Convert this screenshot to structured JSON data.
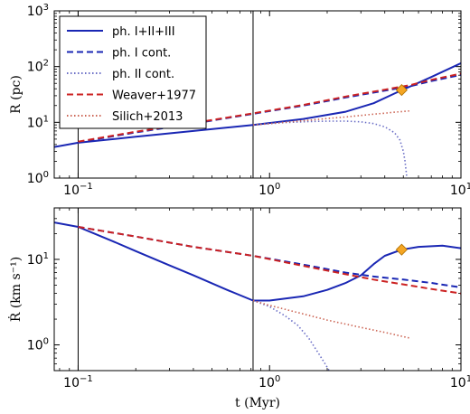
{
  "chart_data": [
    {
      "type": "line",
      "title": "",
      "xlabel": "",
      "ylabel": "R (pc)",
      "x_scale": "log",
      "y_scale": "log",
      "xlim": [
        0.075,
        10
      ],
      "ylim": [
        1,
        1000
      ],
      "x_ticks": [
        {
          "value": 0.1,
          "base": "10",
          "exp": "−1"
        },
        {
          "value": 1,
          "base": "10",
          "exp": "0"
        },
        {
          "value": 10,
          "base": "10",
          "exp": "1"
        }
      ],
      "y_ticks": [
        {
          "value": 1,
          "base": "10",
          "exp": "0"
        },
        {
          "value": 10,
          "base": "10",
          "exp": "1"
        },
        {
          "value": 100,
          "base": "10",
          "exp": "2"
        },
        {
          "value": 1000,
          "base": "10",
          "exp": "3"
        }
      ],
      "vlines": [
        0.1,
        0.82
      ],
      "grid": false,
      "legend": {
        "placement": "top-left",
        "entries": [
          "ph. I+II+III",
          "ph. I cont.",
          "ph. II cont.",
          "Weaver+1977",
          "Silich+2013"
        ]
      },
      "series": [
        {
          "name": "ph. I+II+III",
          "color": "#1a27b4",
          "dash": "solid",
          "x": [
            0.075,
            0.1,
            0.2,
            0.4,
            0.82,
            1.5,
            2.5,
            3.5,
            4.5,
            5.5,
            7,
            10
          ],
          "y": [
            3.6,
            4.3,
            5.5,
            7,
            9,
            11.5,
            15.5,
            22,
            33,
            45,
            65,
            115
          ]
        },
        {
          "name": "ph. I cont.",
          "color": "#1a27b4",
          "dash": "dashed",
          "x": [
            0.1,
            0.2,
            0.4,
            0.82,
            1.5,
            2.5,
            4,
            5.5,
            7,
            10
          ],
          "y": [
            4.4,
            6.6,
            9.5,
            14.2,
            20,
            28,
            37,
            45,
            55,
            71
          ]
        },
        {
          "name": "ph. II cont.",
          "color": "#6a6ec6",
          "dash": "dotted",
          "x": [
            0.82,
            1.2,
            1.6,
            2,
            2.5,
            3,
            3.5,
            4,
            4.5,
            4.8,
            5,
            5.1,
            5.2
          ],
          "y": [
            9,
            9.9,
            10.3,
            10.5,
            10.5,
            10.2,
            9.5,
            8.3,
            6.5,
            4.8,
            3,
            2,
            1.1
          ]
        },
        {
          "name": "Weaver+1977",
          "color": "#cc2222",
          "dash": "dashed",
          "x": [
            0.1,
            0.2,
            0.4,
            0.82,
            1.5,
            2.5,
            4,
            5.5,
            7,
            10
          ],
          "y": [
            4.5,
            6.8,
            9.7,
            14.5,
            20.5,
            29,
            38.5,
            47,
            58,
            75
          ]
        },
        {
          "name": "Silich+2013",
          "color": "#cc6655",
          "dash": "dotted",
          "x": [
            0.82,
            1.2,
            1.6,
            2,
            2.5,
            3,
            3.5,
            4,
            4.5,
            5,
            5.4
          ],
          "y": [
            9,
            10,
            10.9,
            11.7,
            12.5,
            13.3,
            14,
            14.6,
            15.2,
            15.7,
            16
          ]
        }
      ],
      "markers": [
        {
          "x": 4.9,
          "y": 38,
          "shape": "diamond",
          "color": "#f5a623"
        }
      ]
    },
    {
      "type": "line",
      "title": "",
      "xlabel": "t (Myr)",
      "ylabel": "Ṙ (km s⁻¹)",
      "x_scale": "log",
      "y_scale": "log",
      "xlim": [
        0.075,
        10
      ],
      "ylim": [
        0.5,
        40
      ],
      "x_ticks": [
        {
          "value": 0.1,
          "base": "10",
          "exp": "−1"
        },
        {
          "value": 1,
          "base": "10",
          "exp": "0"
        },
        {
          "value": 10,
          "base": "10",
          "exp": "1"
        }
      ],
      "y_ticks": [
        {
          "value": 1,
          "base": "10",
          "exp": "0"
        },
        {
          "value": 10,
          "base": "10",
          "exp": "1"
        }
      ],
      "vlines": [
        0.1,
        0.82
      ],
      "grid": false,
      "series": [
        {
          "name": "ph. I+II+III",
          "color": "#1a27b4",
          "dash": "solid",
          "x": [
            0.075,
            0.1,
            0.15,
            0.2,
            0.3,
            0.4,
            0.6,
            0.82,
            1,
            1.5,
            2,
            2.5,
            3,
            3.5,
            4,
            4.9,
            6,
            8,
            10
          ],
          "y": [
            27,
            24,
            16.5,
            12.5,
            8.5,
            6.5,
            4.4,
            3.3,
            3.3,
            3.7,
            4.4,
            5.3,
            6.5,
            8.8,
            11,
            13,
            14,
            14.5,
            13.5
          ]
        },
        {
          "name": "ph. I cont.",
          "color": "#1a27b4",
          "dash": "dashed",
          "x": [
            0.1,
            0.2,
            0.4,
            0.82,
            1.5,
            2.5,
            3.5,
            5,
            7,
            10
          ],
          "y": [
            24,
            18.5,
            14,
            11,
            8.7,
            7,
            6.3,
            5.8,
            5.3,
            4.7
          ]
        },
        {
          "name": "ph. II cont.",
          "color": "#6a6ec6",
          "dash": "dotted",
          "x": [
            0.82,
            1,
            1.2,
            1.4,
            1.6,
            1.8,
            1.95,
            2.05
          ],
          "y": [
            3.3,
            2.8,
            2.2,
            1.7,
            1.2,
            0.8,
            0.6,
            0.5
          ]
        },
        {
          "name": "Weaver+1977",
          "color": "#cc2222",
          "dash": "dashed",
          "x": [
            0.1,
            0.2,
            0.4,
            0.82,
            1.5,
            2.5,
            3.5,
            5,
            7,
            10
          ],
          "y": [
            24,
            18.5,
            14,
            11,
            8.4,
            6.7,
            5.8,
            5.1,
            4.5,
            4
          ]
        },
        {
          "name": "Silich+2013",
          "color": "#cc6655",
          "dash": "dotted",
          "x": [
            0.82,
            1,
            1.5,
            2,
            3,
            4,
            5.4
          ],
          "y": [
            3.3,
            2.9,
            2.3,
            1.95,
            1.6,
            1.4,
            1.2
          ]
        }
      ],
      "markers": [
        {
          "x": 4.9,
          "y": 13,
          "shape": "diamond",
          "color": "#f5a623"
        }
      ]
    }
  ]
}
